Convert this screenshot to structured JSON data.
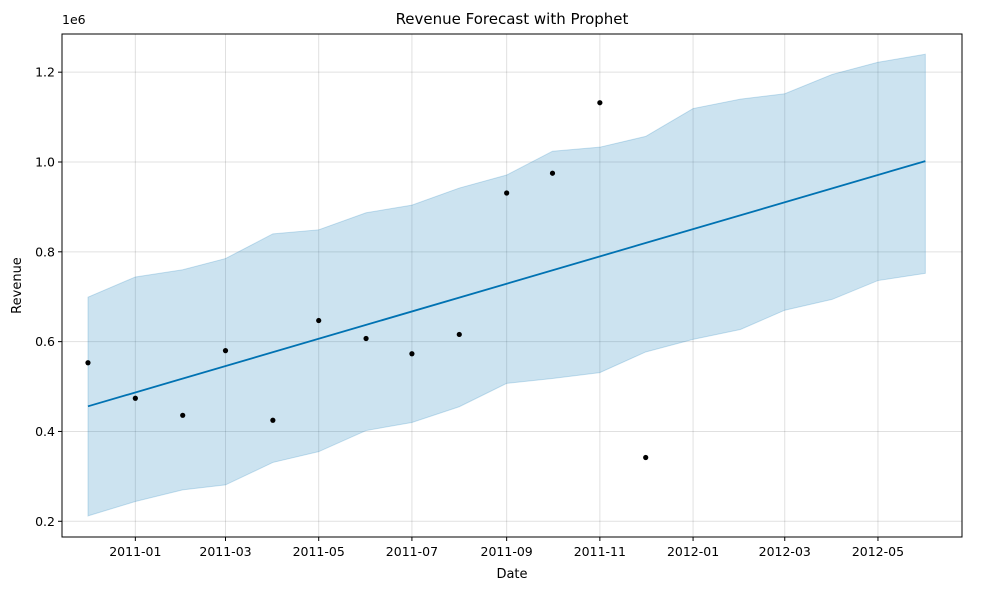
{
  "chart_data": {
    "type": "line",
    "title": "Revenue Forecast with Prophet",
    "xlabel": "Date",
    "ylabel": "Revenue",
    "y_multiplier_label": "1e6",
    "xlim": [
      "2010-11-14",
      "2012-06-25"
    ],
    "ylim": [
      0.165,
      1.285
    ],
    "grid": true,
    "x_ticks": [
      {
        "date": "2011-01-01",
        "label": "2011-01"
      },
      {
        "date": "2011-03-01",
        "label": "2011-03"
      },
      {
        "date": "2011-05-01",
        "label": "2011-05"
      },
      {
        "date": "2011-07-01",
        "label": "2011-07"
      },
      {
        "date": "2011-09-01",
        "label": "2011-09"
      },
      {
        "date": "2011-11-01",
        "label": "2011-11"
      },
      {
        "date": "2012-01-01",
        "label": "2012-01"
      },
      {
        "date": "2012-03-01",
        "label": "2012-03"
      },
      {
        "date": "2012-05-01",
        "label": "2012-05"
      }
    ],
    "y_ticks": [
      {
        "value": 0.2,
        "label": "0.2"
      },
      {
        "value": 0.4,
        "label": "0.4"
      },
      {
        "value": 0.6,
        "label": "0.6"
      },
      {
        "value": 0.8,
        "label": "0.8"
      },
      {
        "value": 1.0,
        "label": "1.0"
      },
      {
        "value": 1.2,
        "label": "1.2"
      }
    ],
    "series": [
      {
        "type": "scatter",
        "color": "#000000",
        "points": [
          {
            "x": "2010-12-01",
            "y": 0.553
          },
          {
            "x": "2011-01-01",
            "y": 0.474
          },
          {
            "x": "2011-02-01",
            "y": 0.436
          },
          {
            "x": "2011-03-01",
            "y": 0.58
          },
          {
            "x": "2011-04-01",
            "y": 0.425
          },
          {
            "x": "2011-05-01",
            "y": 0.647
          },
          {
            "x": "2011-06-01",
            "y": 0.607
          },
          {
            "x": "2011-07-01",
            "y": 0.573
          },
          {
            "x": "2011-08-01",
            "y": 0.616
          },
          {
            "x": "2011-09-01",
            "y": 0.931
          },
          {
            "x": "2011-10-01",
            "y": 0.975
          },
          {
            "x": "2011-11-01",
            "y": 1.132
          },
          {
            "x": "2011-12-01",
            "y": 0.342
          }
        ]
      },
      {
        "type": "line",
        "color": "#0072B2",
        "points": [
          {
            "x": "2010-12-01",
            "y": 0.456
          },
          {
            "x": "2012-06-01",
            "y": 1.002
          }
        ]
      },
      {
        "type": "area",
        "color": "#0072B2",
        "points": [
          {
            "x": "2010-12-01",
            "lower": 0.212,
            "upper": 0.699
          },
          {
            "x": "2011-01-01",
            "lower": 0.244,
            "upper": 0.744
          },
          {
            "x": "2011-02-01",
            "lower": 0.27,
            "upper": 0.76
          },
          {
            "x": "2011-03-01",
            "lower": 0.281,
            "upper": 0.785
          },
          {
            "x": "2011-04-01",
            "lower": 0.331,
            "upper": 0.84
          },
          {
            "x": "2011-05-01",
            "lower": 0.355,
            "upper": 0.849
          },
          {
            "x": "2011-06-01",
            "lower": 0.402,
            "upper": 0.887
          },
          {
            "x": "2011-07-01",
            "lower": 0.42,
            "upper": 0.904
          },
          {
            "x": "2011-08-01",
            "lower": 0.455,
            "upper": 0.942
          },
          {
            "x": "2011-09-01",
            "lower": 0.507,
            "upper": 0.971
          },
          {
            "x": "2011-10-01",
            "lower": 0.518,
            "upper": 1.024
          },
          {
            "x": "2011-11-01",
            "lower": 0.531,
            "upper": 1.033
          },
          {
            "x": "2011-12-01",
            "lower": 0.577,
            "upper": 1.057
          },
          {
            "x": "2012-01-01",
            "lower": 0.605,
            "upper": 1.119
          },
          {
            "x": "2012-02-01",
            "lower": 0.627,
            "upper": 1.14
          },
          {
            "x": "2012-03-01",
            "lower": 0.67,
            "upper": 1.152
          },
          {
            "x": "2012-04-01",
            "lower": 0.694,
            "upper": 1.195
          },
          {
            "x": "2012-05-01",
            "lower": 0.736,
            "upper": 1.222
          },
          {
            "x": "2012-06-01",
            "lower": 0.752,
            "upper": 1.24
          }
        ]
      }
    ]
  }
}
